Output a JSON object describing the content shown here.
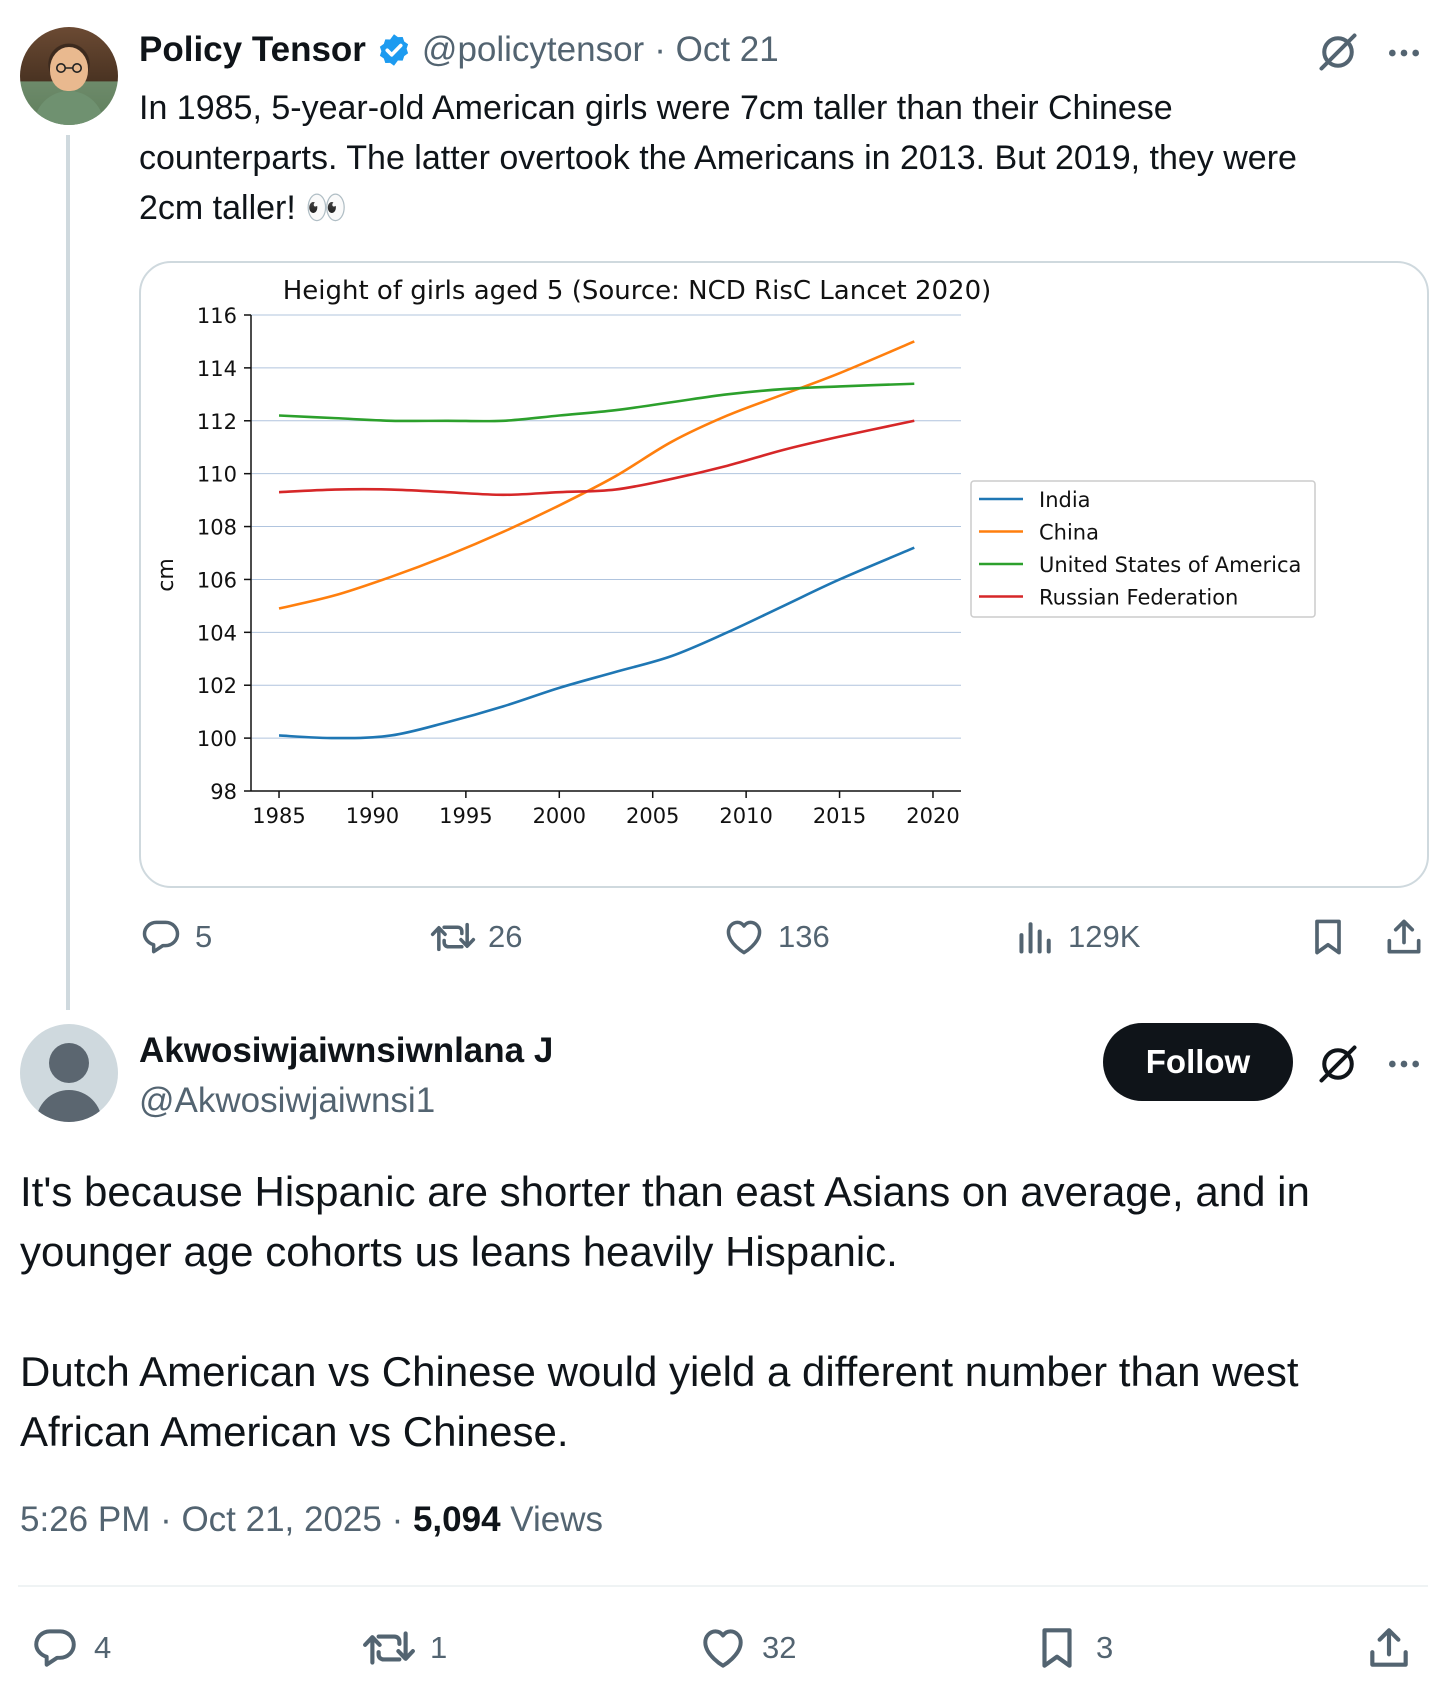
{
  "tweet": {
    "author_name": "Policy Tensor",
    "author_handle": "@policytensor",
    "date": "· Oct 21",
    "text_lines": [
      "In 1985, 5-year-old American girls were 7cm taller than their Chinese",
      "counterparts. The latter overtook the Americans in 2013. But 2019, they were",
      "2cm taller! 👀"
    ],
    "actions": {
      "replies": "5",
      "reposts": "26",
      "likes": "136",
      "views": "129K"
    }
  },
  "reply": {
    "author_name": "Akwosiwjaiwnsiwnlana J",
    "author_handle": "@Akwosiwjaiwnsi1",
    "follow_label": "Follow",
    "paragraph1_lines": [
      "It's because Hispanic are shorter than east Asians on average, and in",
      "younger age cohorts us leans heavily Hispanic."
    ],
    "paragraph2_lines": [
      "Dutch American vs Chinese would yield a different number than west",
      "African American vs Chinese."
    ],
    "time": "5:26 PM · Oct 21, 2025 · ",
    "views_count": "5,094",
    "views_label": " Views",
    "actions": {
      "replies": "4",
      "reposts": "1",
      "likes": "32",
      "bookmarks": "3"
    }
  },
  "chart_data": {
    "type": "line",
    "title": "Height of girls aged 5 (Source: NCD RisC Lancet 2020)",
    "xlabel": "",
    "ylabel": "cm",
    "xlim": [
      1983.5,
      2021.5
    ],
    "ylim": [
      98,
      116
    ],
    "xticks": [
      1985,
      1990,
      1995,
      2000,
      2005,
      2010,
      2015,
      2020
    ],
    "yticks": [
      98,
      100,
      102,
      104,
      106,
      108,
      110,
      112,
      114,
      116
    ],
    "grid": "horizontal",
    "legend_position": "center-right",
    "x": [
      1985,
      1988,
      1991,
      1994,
      1997,
      2000,
      2003,
      2006,
      2009,
      2012,
      2015,
      2019
    ],
    "series": [
      {
        "name": "India",
        "color": "#1f77b4",
        "values": [
          100.1,
          100.0,
          100.1,
          100.6,
          101.2,
          101.9,
          102.5,
          103.1,
          104.0,
          105.0,
          106.0,
          107.2
        ]
      },
      {
        "name": "China",
        "color": "#ff7f0e",
        "values": [
          104.9,
          105.4,
          106.1,
          106.9,
          107.8,
          108.8,
          109.9,
          111.2,
          112.2,
          113.0,
          113.8,
          115.0
        ]
      },
      {
        "name": "United States of America",
        "color": "#2ca02c",
        "values": [
          112.2,
          112.1,
          112.0,
          112.0,
          112.0,
          112.2,
          112.4,
          112.7,
          113.0,
          113.2,
          113.3,
          113.4
        ]
      },
      {
        "name": "Russian Federation",
        "color": "#d62728",
        "values": [
          109.3,
          109.4,
          109.4,
          109.3,
          109.2,
          109.3,
          109.4,
          109.8,
          110.3,
          110.9,
          111.4,
          112.0
        ]
      }
    ]
  }
}
